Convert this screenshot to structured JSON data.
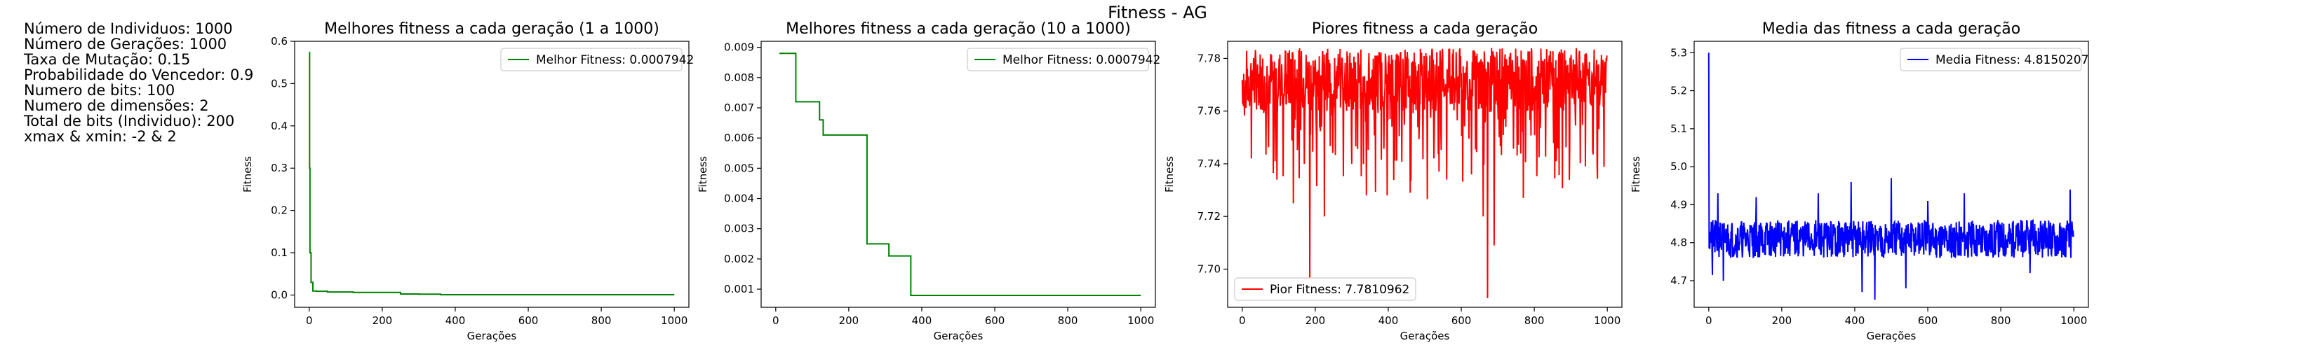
{
  "figure_title": "Fitness - AG",
  "parameters": [
    "Número de Individuos: 1000",
    "Número de Gerações: 1000",
    "Taxa de Mutação: 0.15",
    "Probabilidade do Vencedor: 0.9",
    "Numero de bits: 100",
    "Numero de dimensões: 2",
    "Total de bits (Individuo): 200",
    "xmax & xmin: -2 & 2"
  ],
  "chart_data": [
    {
      "type": "line",
      "title": "Melhores fitness a cada geração (1 a 1000)",
      "xlabel": "Gerações",
      "ylabel": "Fitness",
      "xlim": [
        -40,
        1040
      ],
      "ylim": [
        -0.029,
        0.6
      ],
      "xticks": [
        "0",
        "200",
        "400",
        "600",
        "800",
        "1000"
      ],
      "yticks": [
        "0.0",
        "0.1",
        "0.2",
        "0.3",
        "0.4",
        "0.5",
        "0.6"
      ],
      "legend": "upper right",
      "legend_position": "top-right",
      "series": [
        {
          "name": "Melhor Fitness: 0.0007942",
          "color": "#008000",
          "step": true,
          "x": [
            0,
            1,
            2,
            5,
            10,
            20,
            50,
            120,
            250,
            300,
            360,
            1000
          ],
          "values": [
            0.574,
            0.3,
            0.1,
            0.03,
            0.0095,
            0.0088,
            0.0072,
            0.0061,
            0.0025,
            0.0021,
            0.0007942,
            0.0007942
          ]
        }
      ]
    },
    {
      "type": "line",
      "title": "Melhores fitness a cada geração (10 a 1000)",
      "xlabel": "Gerações",
      "ylabel": "Fitness",
      "xlim": [
        -40,
        1040
      ],
      "ylim": [
        0.0004,
        0.0092
      ],
      "xticks": [
        "0",
        "200",
        "400",
        "600",
        "800",
        "1000"
      ],
      "yticks": [
        "0.001",
        "0.002",
        "0.003",
        "0.004",
        "0.005",
        "0.006",
        "0.007",
        "0.008",
        "0.009"
      ],
      "legend": "upper right",
      "legend_position": "top-right",
      "series": [
        {
          "name": "Melhor Fitness: 0.0007942",
          "color": "#008000",
          "step": true,
          "x": [
            10,
            50,
            55,
            115,
            120,
            130,
            245,
            250,
            305,
            310,
            360,
            370,
            1000
          ],
          "values": [
            0.0088,
            0.0088,
            0.0072,
            0.0072,
            0.0066,
            0.0061,
            0.0061,
            0.0025,
            0.0025,
            0.0021,
            0.0021,
            0.0007942,
            0.0007942
          ]
        }
      ]
    },
    {
      "type": "line",
      "title": "Piores fitness a cada geração",
      "xlabel": "Gerações",
      "ylabel": "Fitness",
      "xlim": [
        -40,
        1040
      ],
      "ylim": [
        7.6855,
        7.7865
      ],
      "xticks": [
        "0",
        "200",
        "400",
        "600",
        "800",
        "1000"
      ],
      "yticks": [
        "7.70",
        "7.72",
        "7.74",
        "7.76",
        "7.78"
      ],
      "legend": "lower left",
      "legend_position": "bottom-left",
      "series": [
        {
          "name": "Pior Fitness: 7.7810962",
          "color": "#ff0000",
          "noise": {
            "count": 1000,
            "base": 7.772,
            "jitter": 0.012,
            "max": 7.7845,
            "dips": 0.15,
            "dip_depth": 0.035,
            "seed": 7
          },
          "spikes": [
            [
              25,
              7.742
            ],
            [
              90,
              7.741
            ],
            [
              140,
              7.725
            ],
            [
              170,
              7.74
            ],
            [
              185,
              7.694
            ],
            [
              225,
              7.72
            ],
            [
              300,
              7.74
            ],
            [
              340,
              7.728
            ],
            [
              460,
              7.729
            ],
            [
              560,
              7.734
            ],
            [
              660,
              7.72
            ],
            [
              672,
              7.689
            ],
            [
              690,
              7.709
            ],
            [
              770,
              7.727
            ],
            [
              860,
              7.741
            ],
            [
              940,
              7.739
            ],
            [
              960,
              7.745
            ]
          ],
          "last_value": 7.7810962
        }
      ]
    },
    {
      "type": "line",
      "title": "Media das fitness a cada geração",
      "xlabel": "Gerações",
      "ylabel": "Fitness",
      "xlim": [
        -40,
        1040
      ],
      "ylim": [
        4.63,
        5.33
      ],
      "xticks": [
        "0",
        "200",
        "400",
        "600",
        "800",
        "1000"
      ],
      "yticks": [
        "4.7",
        "4.8",
        "4.9",
        "5.0",
        "5.1",
        "5.2",
        "5.3"
      ],
      "legend": "upper right",
      "legend_position": "top-right",
      "series": [
        {
          "name": "Media Fitness: 4.8150207",
          "color": "#0000ff",
          "first_value": 5.3,
          "noise": {
            "count": 1000,
            "base": 4.81,
            "jitter": 0.05,
            "max": 4.95,
            "min": 4.645,
            "seed": 21
          },
          "spikes": [
            [
              10,
              4.715
            ],
            [
              25,
              4.93
            ],
            [
              40,
              4.7
            ],
            [
              130,
              4.92
            ],
            [
              300,
              4.93
            ],
            [
              390,
              4.96
            ],
            [
              420,
              4.67
            ],
            [
              455,
              4.65
            ],
            [
              500,
              4.97
            ],
            [
              540,
              4.68
            ],
            [
              600,
              4.91
            ],
            [
              700,
              4.93
            ],
            [
              880,
              4.72
            ],
            [
              990,
              4.94
            ]
          ],
          "last_value": 4.8150207
        }
      ]
    }
  ]
}
